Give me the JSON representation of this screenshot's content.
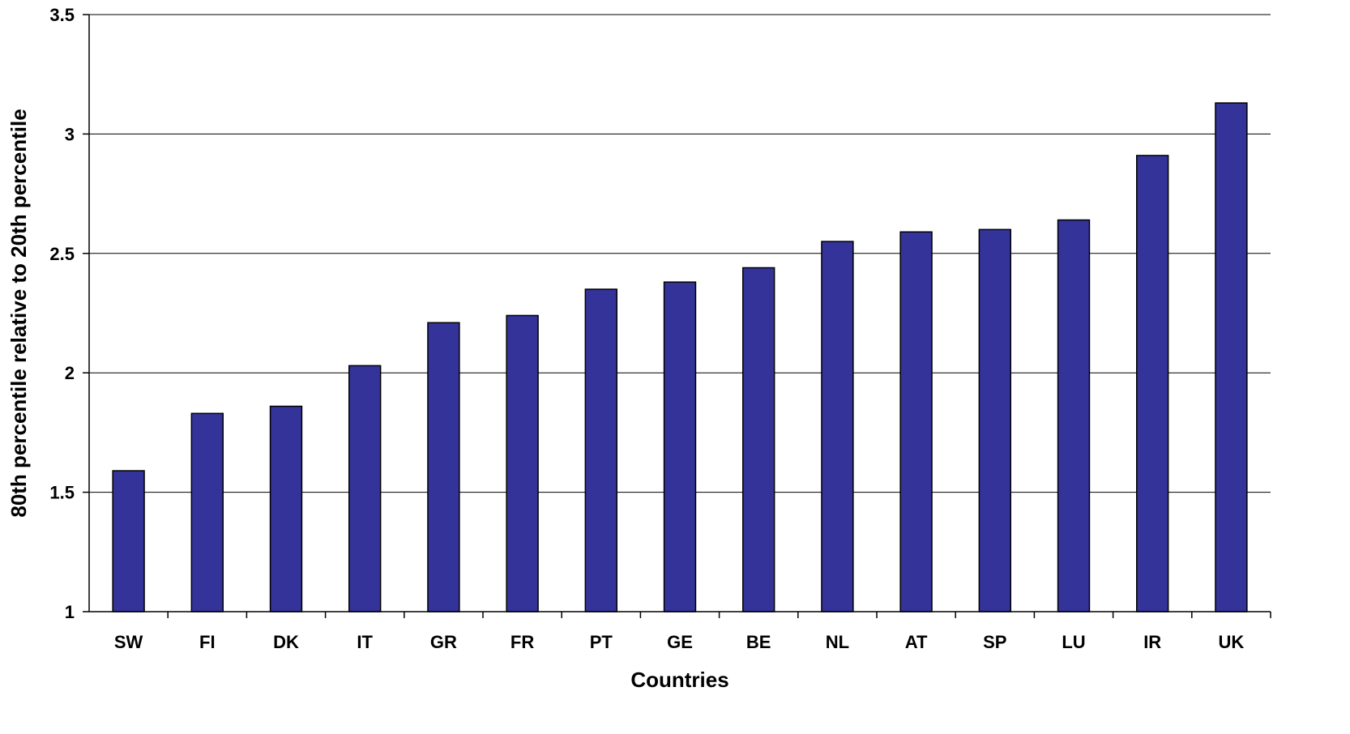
{
  "chart_data": {
    "type": "bar",
    "title": "",
    "xlabel": "Countries",
    "ylabel": "80th percentile relative to 20th percentile",
    "categories": [
      "SW",
      "FI",
      "DK",
      "IT",
      "GR",
      "FR",
      "PT",
      "GE",
      "BE",
      "NL",
      "AT",
      "SP",
      "LU",
      "IR",
      "UK"
    ],
    "values": [
      1.59,
      1.83,
      1.86,
      2.03,
      2.21,
      2.24,
      2.35,
      2.38,
      2.44,
      2.55,
      2.59,
      2.6,
      2.64,
      2.91,
      3.13
    ],
    "ylim": [
      1,
      3.5
    ],
    "yticks": [
      1,
      1.5,
      2,
      2.5,
      3,
      3.5
    ],
    "ytick_labels": [
      "1",
      "1.5",
      "2",
      "2.5",
      "3",
      "3.5"
    ],
    "grid": true,
    "bar_color": "#333399"
  }
}
